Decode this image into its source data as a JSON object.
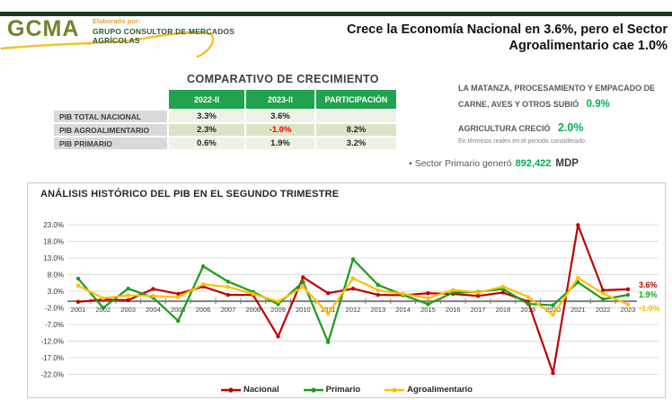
{
  "header": {
    "bar_color": "#1E3A23",
    "logo": {
      "acronym": "GCMA",
      "dot": ".",
      "tagline": "Elaborado por:",
      "company": "GRUPO CONSULTOR DE MERCADOS AGRÍCOLAS"
    },
    "title_line1": "Crece la Economía Nacional en 3.6%, pero el Sector",
    "title_line2": "Agroalimentario cae 1.0%"
  },
  "comparison_table": {
    "title": "COMPARATIVO DE CRECIMIENTO",
    "columns": [
      "2022-II",
      "2023-II",
      "PARTICIPACIÓN"
    ],
    "rows": [
      {
        "label": "PIB TOTAL NACIONAL",
        "values": [
          "3.3%",
          "3.6%",
          ""
        ]
      },
      {
        "label": "PIB AGROALIMENTARIO",
        "values": [
          "2.3%",
          "-1.0%",
          "8.2%"
        ]
      },
      {
        "label": "PIB PRIMARIO",
        "values": [
          "0.6%",
          "1.9%",
          "3.2%"
        ]
      }
    ],
    "header_bg": "#21A24F",
    "negative_color": "#FF0000"
  },
  "highlights": {
    "item1_text": "LA MATANZA, PROCESAMIENTO Y EMPACADO DE CARNE, AVES Y OTROS SUBIÓ",
    "item1_value": "0.9%",
    "item2_text": "AGRICULTURA CRECIÓ",
    "item2_value": "2.0%",
    "footnote": "En términos reales en el periodo considerado.",
    "bullet_text": "Sector Primario generó",
    "bullet_value": "892,422",
    "bullet_unit": "MDP",
    "accent_green": "#00B050"
  },
  "chart_data": {
    "type": "line",
    "title": "ANÁLISIS HISTÓRICO DEL PIB EN EL SEGUNDO TRIMESTRE",
    "x": [
      "2001",
      "2002",
      "2003",
      "2004",
      "2005",
      "2006",
      "2007",
      "2008",
      "2009",
      "2010",
      "2011",
      "2012",
      "2013",
      "2014",
      "2015",
      "2016",
      "2017",
      "2018",
      "2019",
      "2020",
      "2021",
      "2022",
      "2023"
    ],
    "series": [
      {
        "name": "Nacional",
        "color": "#C00000",
        "end_label": "3.6%",
        "values": [
          -0.2,
          0.5,
          0.3,
          3.7,
          2.2,
          4.4,
          1.9,
          1.9,
          -10.6,
          7.2,
          2.4,
          3.8,
          1.9,
          1.8,
          2.4,
          2.2,
          1.6,
          2.6,
          -0.1,
          -21.6,
          22.9,
          3.3,
          3.6
        ]
      },
      {
        "name": "Primario",
        "color": "#1B9C1B",
        "end_label": "1.9%",
        "values": [
          6.8,
          -2.0,
          3.8,
          1.1,
          -5.9,
          10.5,
          5.9,
          2.8,
          -0.9,
          5.8,
          -12.3,
          12.6,
          4.9,
          1.9,
          -0.9,
          2.6,
          2.8,
          3.7,
          -0.8,
          -1.2,
          5.7,
          0.6,
          1.9
        ]
      },
      {
        "name": "Agroalimentario",
        "color": "#FFC000",
        "end_label": "-1.0%",
        "values": [
          4.7,
          0.9,
          1.8,
          1.6,
          1.2,
          5.1,
          4.3,
          2.2,
          -0.1,
          4.3,
          -3.7,
          6.9,
          3.3,
          2.2,
          0.9,
          3.4,
          2.6,
          4.4,
          1.3,
          -4.1,
          7.0,
          2.3,
          -1.0
        ]
      }
    ],
    "ylim": [
      -22,
      23
    ],
    "ytick_step": 5,
    "grid": true,
    "legend_position": "bottom"
  }
}
